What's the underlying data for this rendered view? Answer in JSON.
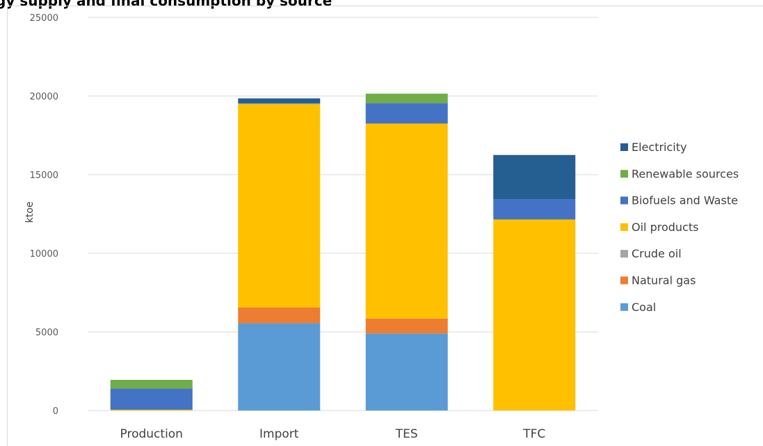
{
  "chart_data": {
    "type": "bar",
    "stacked": true,
    "title": "gy supply and final consumption by source",
    "xlabel": "",
    "ylabel": "ktoe",
    "ylim": [
      0,
      25000
    ],
    "yticks": [
      "0",
      "5000",
      "10000",
      "15000",
      "20000",
      "25000"
    ],
    "grid": true,
    "legend_position": "right",
    "categories": [
      "Production",
      "Import",
      "TES",
      "TFC"
    ],
    "series": [
      {
        "name": "Coal",
        "color": "#5b9bd5",
        "values": [
          0,
          5550,
          4900,
          0
        ]
      },
      {
        "name": "Natural gas",
        "color": "#ed7d31",
        "values": [
          0,
          1000,
          950,
          0
        ]
      },
      {
        "name": "Crude oil",
        "color": "#a5a5a5",
        "values": [
          0,
          0,
          0,
          0
        ]
      },
      {
        "name": "Oil products",
        "color": "#ffc000",
        "values": [
          50,
          12950,
          12400,
          12150
        ]
      },
      {
        "name": "Biofuels and Waste",
        "color": "#4472c4",
        "values": [
          1350,
          50,
          1300,
          1300
        ]
      },
      {
        "name": "Renewable sources",
        "color": "#70ad47",
        "values": [
          550,
          0,
          600,
          0
        ]
      },
      {
        "name": "Electricity",
        "color": "#255e91",
        "values": [
          0,
          300,
          0,
          2800
        ]
      }
    ],
    "legend_order": [
      "Electricity",
      "Renewable sources",
      "Biofuels and Waste",
      "Oil products",
      "Crude oil",
      "Natural gas",
      "Coal"
    ]
  }
}
